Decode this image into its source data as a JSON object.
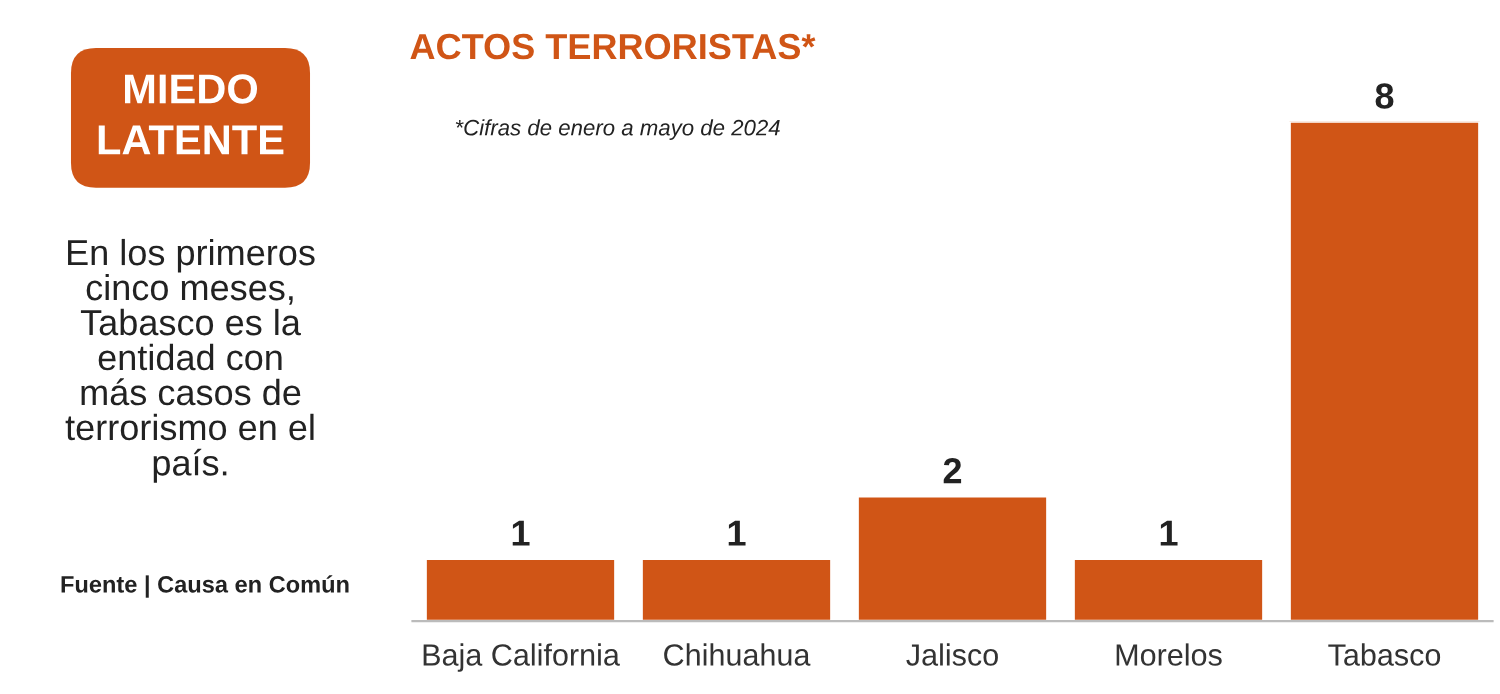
{
  "chart_data": {
    "type": "bar",
    "title": "ACTOS TERRORISTAS*",
    "subtitle": "*Cifras de enero a mayo de 2024",
    "categories": [
      "Baja California",
      "Chihuahua",
      "Jalisco",
      "Morelos",
      "Tabasco"
    ],
    "values": [
      1,
      1,
      2,
      1,
      8
    ],
    "color": "#d05516",
    "data_labels": true,
    "tick_labels": "x",
    "annotations": [
      "MIEDO\nLATENTE",
      "En los primeros\ncinco meses,\nTabasco es la\nentidad con\nmás casos de\nterrorismo en el\npaís.",
      "Fuente | Causa en Común"
    ]
  }
}
